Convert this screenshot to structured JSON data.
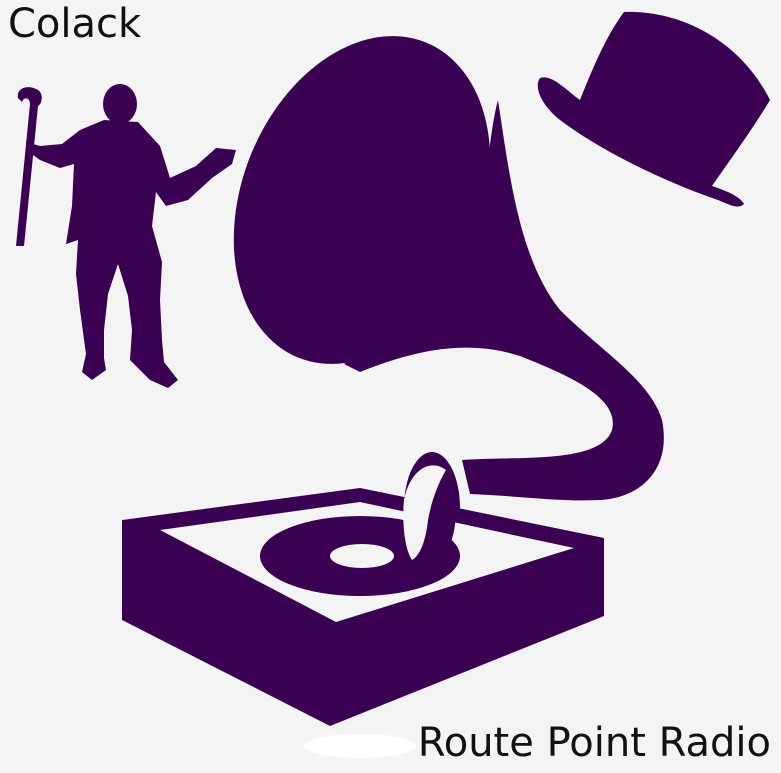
{
  "labels": {
    "artist": "Colack",
    "title": "Route Point Radio"
  },
  "colors": {
    "background": "#f4f4f4",
    "silhouette": "#3a0052"
  },
  "icons": [
    "dancer-with-cane-icon",
    "gramophone-icon",
    "top-hat-icon"
  ]
}
